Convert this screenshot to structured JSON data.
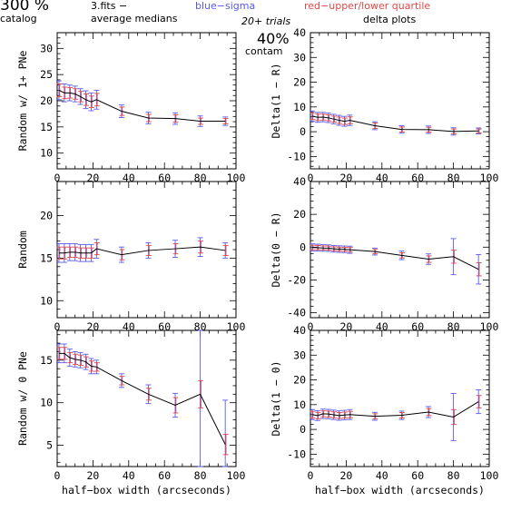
{
  "header": {
    "percent": "300 %",
    "catalog": "catalog",
    "file": "3.fits  −",
    "average": "average medians",
    "blue": "blue−sigma",
    "red": "red−upper/lower quartile",
    "trials": "20+ trials",
    "contam_pct": "40%",
    "contam": "contam",
    "delta": "delta plots"
  },
  "colors": {
    "line": "#000000",
    "sigma": "#5a5af0",
    "quartile": "#e04848",
    "text": "#000000"
  },
  "chart_data": [
    {
      "type": "line",
      "panel": "left-top",
      "ylabel": "Random w/ 1+ PNe",
      "xlabel": "",
      "xlim": [
        0,
        100
      ],
      "ylim": [
        7,
        33
      ],
      "yticks": [
        10,
        15,
        20,
        25,
        30
      ],
      "xtick_labels": [
        "0",
        "20",
        "40",
        "60",
        "80",
        "100"
      ],
      "x": [
        1,
        4,
        7,
        10,
        13,
        16,
        19,
        22,
        36,
        51,
        66,
        80,
        94
      ],
      "y": [
        22,
        21.5,
        21.5,
        21.3,
        20.8,
        20.2,
        19.8,
        20.2,
        18,
        16.7,
        16.6,
        16.1,
        16.1
      ],
      "sigma": [
        1.8,
        1.7,
        1.5,
        1.5,
        1.5,
        1.7,
        1.7,
        1.8,
        1.2,
        1.1,
        1.1,
        1.0,
        0.8
      ],
      "quartile": [
        1.2,
        1.1,
        1.0,
        1.0,
        1.0,
        1.1,
        1.1,
        1.2,
        0.8,
        0.7,
        0.7,
        0.6,
        0.5
      ]
    },
    {
      "type": "line",
      "panel": "right-top",
      "ylabel": "Delta(1 − R)",
      "xlabel": "",
      "xlim": [
        0,
        100
      ],
      "ylim": [
        -15,
        40
      ],
      "yticks": [
        -10,
        0,
        10,
        20,
        30,
        40
      ],
      "xtick_labels": [
        "0",
        "20",
        "40",
        "60",
        "80",
        "100"
      ],
      "x": [
        1,
        4,
        7,
        10,
        13,
        16,
        19,
        22,
        36,
        51,
        66,
        80,
        94
      ],
      "y": [
        6.3,
        5.8,
        5.9,
        5.6,
        5.1,
        4.6,
        4.2,
        4.6,
        2.4,
        0.9,
        0.8,
        0.1,
        0.3
      ],
      "sigma": [
        2.1,
        2,
        1.9,
        1.9,
        1.9,
        2,
        2,
        2.1,
        1.6,
        1.5,
        1.5,
        1.5,
        1.2
      ],
      "quartile": [
        1.4,
        1.3,
        1.2,
        1.2,
        1.2,
        1.3,
        1.3,
        1.4,
        1.1,
        1.0,
        1.0,
        1.0,
        0.8
      ]
    },
    {
      "type": "line",
      "panel": "left-middle",
      "ylabel": "Random",
      "xlabel": "",
      "xlim": [
        0,
        100
      ],
      "ylim": [
        8,
        24
      ],
      "yticks": [
        10,
        15,
        20
      ],
      "xtick_labels": [
        "0",
        "20",
        "40",
        "60",
        "80",
        "100"
      ],
      "x": [
        1,
        4,
        7,
        10,
        13,
        16,
        19,
        22,
        36,
        51,
        66,
        80,
        94
      ],
      "y": [
        15.6,
        15.6,
        15.7,
        15.7,
        15.6,
        15.6,
        15.6,
        16.1,
        15.4,
        15.9,
        16.1,
        16.3,
        15.9
      ],
      "sigma": [
        1.1,
        1.1,
        1.0,
        1.0,
        1.0,
        1.0,
        1.0,
        1.1,
        0.9,
        0.9,
        1.0,
        1.1,
        0.9
      ],
      "quartile": [
        0.7,
        0.7,
        0.6,
        0.6,
        0.6,
        0.6,
        0.6,
        0.7,
        0.6,
        0.6,
        0.6,
        0.7,
        0.6
      ]
    },
    {
      "type": "line",
      "panel": "right-middle",
      "ylabel": "Delta(0 − R)",
      "xlabel": "",
      "xlim": [
        0,
        100
      ],
      "ylim": [
        -43,
        40
      ],
      "yticks": [
        -40,
        -20,
        0,
        20,
        40
      ],
      "xtick_labels": [
        "0",
        "20",
        "40",
        "60",
        "80",
        "100"
      ],
      "x": [
        1,
        4,
        7,
        10,
        13,
        16,
        19,
        22,
        36,
        51,
        66,
        80,
        94
      ],
      "y": [
        -0.2,
        -0.3,
        -0.5,
        -0.6,
        -1,
        -1.2,
        -1.3,
        -1.6,
        -2.7,
        -5,
        -7.3,
        -5.8,
        -13.5
      ],
      "sigma": [
        2.2,
        2.1,
        2,
        2,
        2,
        2,
        2,
        2.2,
        2.1,
        2.6,
        3.2,
        11,
        9
      ],
      "quartile": [
        1.4,
        1.3,
        1.2,
        1.2,
        1.2,
        1.2,
        1.2,
        1.4,
        1.3,
        1.6,
        2.0,
        4,
        4
      ]
    },
    {
      "type": "line",
      "panel": "left-bottom",
      "ylabel": "Random w/ 0 PNe",
      "xlabel": "half−box width (arcseconds)",
      "xlim": [
        0,
        100
      ],
      "ylim": [
        2.5,
        18.5
      ],
      "yticks": [
        5,
        10,
        15
      ],
      "xtick_labels": [
        "0",
        "20",
        "40",
        "60",
        "80",
        "100"
      ],
      "x": [
        1,
        4,
        7,
        10,
        13,
        16,
        19,
        22,
        36,
        51,
        66,
        80,
        94
      ],
      "y": [
        15.8,
        15.8,
        15.3,
        15.1,
        15,
        14.8,
        14.3,
        14.2,
        12.6,
        11,
        9.7,
        11,
        5.1
      ],
      "sigma": [
        1.1,
        1.1,
        1.0,
        0.9,
        0.9,
        0.9,
        0.9,
        0.8,
        0.8,
        1.1,
        1.4,
        9.7,
        5.2
      ],
      "quartile": [
        0.7,
        0.7,
        0.6,
        0.6,
        0.6,
        0.6,
        0.6,
        0.5,
        0.5,
        0.7,
        0.9,
        1.6,
        1.2
      ]
    },
    {
      "type": "line",
      "panel": "right-bottom",
      "ylabel": "Delta(1 − 0)",
      "xlabel": "half−box width (arcseconds)",
      "xlim": [
        0,
        100
      ],
      "ylim": [
        -15,
        40
      ],
      "yticks": [
        -10,
        0,
        10,
        20,
        30,
        40
      ],
      "xtick_labels": [
        "0",
        "20",
        "40",
        "60",
        "80",
        "100"
      ],
      "x": [
        1,
        4,
        7,
        10,
        13,
        16,
        19,
        22,
        36,
        51,
        66,
        80,
        94
      ],
      "y": [
        6,
        5.6,
        6.3,
        6.2,
        5.9,
        5.6,
        5.8,
        6,
        5.3,
        5.7,
        7,
        5,
        11.2
      ],
      "sigma": [
        2,
        2,
        1.9,
        1.9,
        1.9,
        1.9,
        1.9,
        2,
        1.6,
        1.7,
        2.2,
        9.5,
        4.8
      ],
      "quartile": [
        1.3,
        1.3,
        1.2,
        1.2,
        1.2,
        1.2,
        1.2,
        1.3,
        1.0,
        1.1,
        1.4,
        3,
        2.5
      ]
    }
  ]
}
